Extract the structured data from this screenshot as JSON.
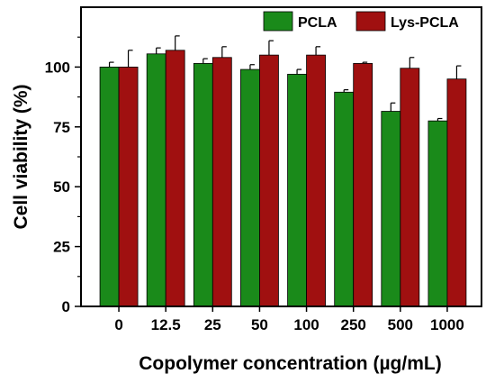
{
  "chart_data": {
    "type": "bar",
    "xlabel": "Copolymer concentration (µg/mL)",
    "ylabel": "Cell viability (%)",
    "categories": [
      "0",
      "12.5",
      "25",
      "50",
      "100",
      "250",
      "500",
      "1000"
    ],
    "ylim": [
      0,
      125
    ],
    "yticks": [
      "0",
      "25",
      "50",
      "75",
      "100"
    ],
    "legend_position": "top-right",
    "grid": false,
    "series": [
      {
        "name": "PCLA",
        "color": "#1a8a1a",
        "values": [
          100,
          105.5,
          101.5,
          99,
          97,
          89.5,
          81.5,
          77.5
        ],
        "errors": [
          2,
          2.5,
          2,
          2,
          2,
          1,
          3.5,
          1
        ]
      },
      {
        "name": "Lys-PCLA",
        "color": "#a01010",
        "values": [
          100,
          107,
          104,
          105,
          105,
          101.5,
          99.5,
          95
        ],
        "errors": [
          7,
          6,
          4.5,
          6,
          3.5,
          0.5,
          4.5,
          5.5
        ]
      }
    ]
  }
}
